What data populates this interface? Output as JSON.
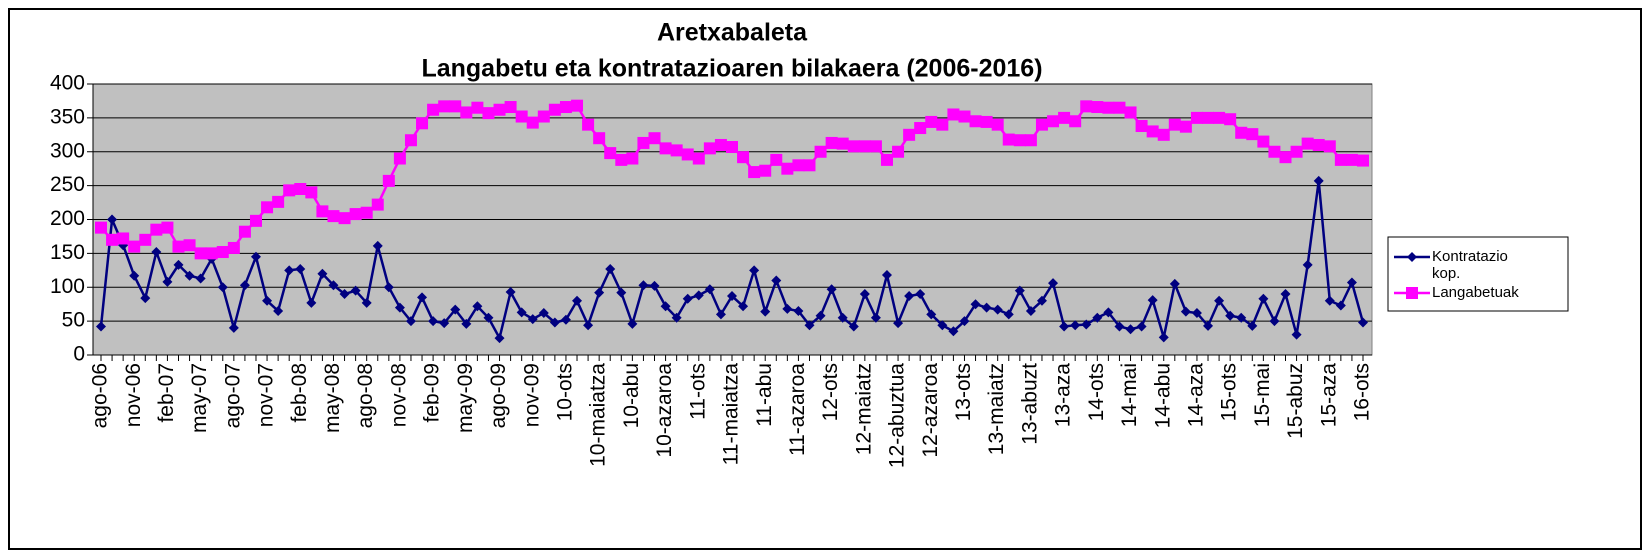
{
  "chart_data": {
    "type": "line",
    "title": "Aretxabaleta",
    "subtitle": "Langabetu eta kontratazioaren bilakaera (2006-2016)",
    "categories": [
      "ago-06",
      null,
      null,
      "nov-06",
      null,
      null,
      "feb-07",
      null,
      null,
      "may-07",
      null,
      null,
      "ago-07",
      null,
      null,
      "nov-07",
      null,
      null,
      "feb-08",
      null,
      null,
      "may-08",
      null,
      null,
      "ago-08",
      null,
      null,
      "nov-08",
      null,
      null,
      "feb-09",
      null,
      null,
      "may-09",
      null,
      null,
      "ago-09",
      null,
      null,
      "nov-09",
      null,
      null,
      "10-ots",
      null,
      null,
      "10-maiatza",
      null,
      null,
      "10-abu",
      null,
      null,
      "10-azaroa",
      null,
      null,
      "11-ots",
      null,
      null,
      "11-maiatza",
      null,
      null,
      "11-abu",
      null,
      null,
      "11-azaroa",
      null,
      null,
      "12-ots",
      null,
      null,
      "12-maiatz",
      null,
      null,
      "12-abuztua",
      null,
      null,
      "12-azaroa",
      null,
      null,
      "13-ots",
      null,
      null,
      "13-maiatz",
      null,
      null,
      "13-abuzt",
      null,
      null,
      "13-aza",
      null,
      null,
      "14-ots",
      null,
      null,
      "14-mai",
      null,
      null,
      "14-abu",
      null,
      null,
      "14-aza",
      null,
      null,
      "15-ots",
      null,
      null,
      "15-mai",
      null,
      null,
      "15-abuz",
      null,
      null,
      "15-aza",
      null,
      null,
      "16-ots"
    ],
    "series": [
      {
        "name": "Kontratazio kop.",
        "color": "#000080",
        "marker": "diamond",
        "values": [
          42,
          200,
          162,
          117,
          84,
          152,
          108,
          133,
          117,
          113,
          142,
          100,
          40,
          103,
          145,
          80,
          65,
          125,
          127,
          77,
          120,
          103,
          90,
          95,
          77,
          161,
          100,
          70,
          50,
          85,
          50,
          47,
          67,
          46,
          72,
          55,
          25,
          93,
          63,
          53,
          62,
          48,
          52,
          80,
          44,
          92,
          127,
          92,
          46,
          103,
          102,
          72,
          55,
          83,
          88,
          97,
          60,
          87,
          72,
          125,
          64,
          110,
          68,
          65,
          44,
          58,
          97,
          55,
          42,
          90,
          55,
          118,
          47,
          87,
          90,
          60,
          44,
          35,
          50,
          75,
          70,
          67,
          60,
          95,
          65,
          80,
          106,
          42,
          44,
          45,
          55,
          63,
          42,
          38,
          42,
          81,
          26,
          105,
          64,
          62,
          43,
          80,
          58,
          55,
          43,
          83,
          50,
          90,
          30,
          133,
          257,
          80,
          73,
          107,
          48
        ]
      },
      {
        "name": "Langabetuak",
        "color": "#ff00ff",
        "marker": "square",
        "values": [
          188,
          170,
          172,
          160,
          170,
          185,
          188,
          160,
          162,
          150,
          150,
          152,
          158,
          182,
          198,
          218,
          226,
          243,
          245,
          240,
          212,
          205,
          202,
          208,
          210,
          222,
          257,
          290,
          317,
          342,
          362,
          367,
          367,
          358,
          365,
          357,
          362,
          366,
          352,
          343,
          352,
          362,
          366,
          368,
          340,
          320,
          298,
          288,
          290,
          313,
          320,
          305,
          302,
          296,
          290,
          305,
          310,
          307,
          292,
          270,
          272,
          288,
          275,
          280,
          280,
          300,
          313,
          312,
          308,
          308,
          308,
          288,
          300,
          325,
          335,
          344,
          340,
          355,
          352,
          345,
          344,
          340,
          318,
          317,
          317,
          340,
          345,
          350,
          345,
          367,
          366,
          365,
          365,
          358,
          338,
          330,
          325,
          340,
          337,
          350,
          350,
          350,
          348,
          328,
          326,
          315,
          300,
          292,
          300,
          312,
          310,
          308,
          288,
          288,
          287
        ]
      }
    ],
    "ylim": [
      0,
      400
    ],
    "yticks": [
      0,
      50,
      100,
      150,
      200,
      250,
      300,
      350,
      400
    ],
    "grid": true,
    "plot_background": "#c0c0c0",
    "legend": "right"
  }
}
